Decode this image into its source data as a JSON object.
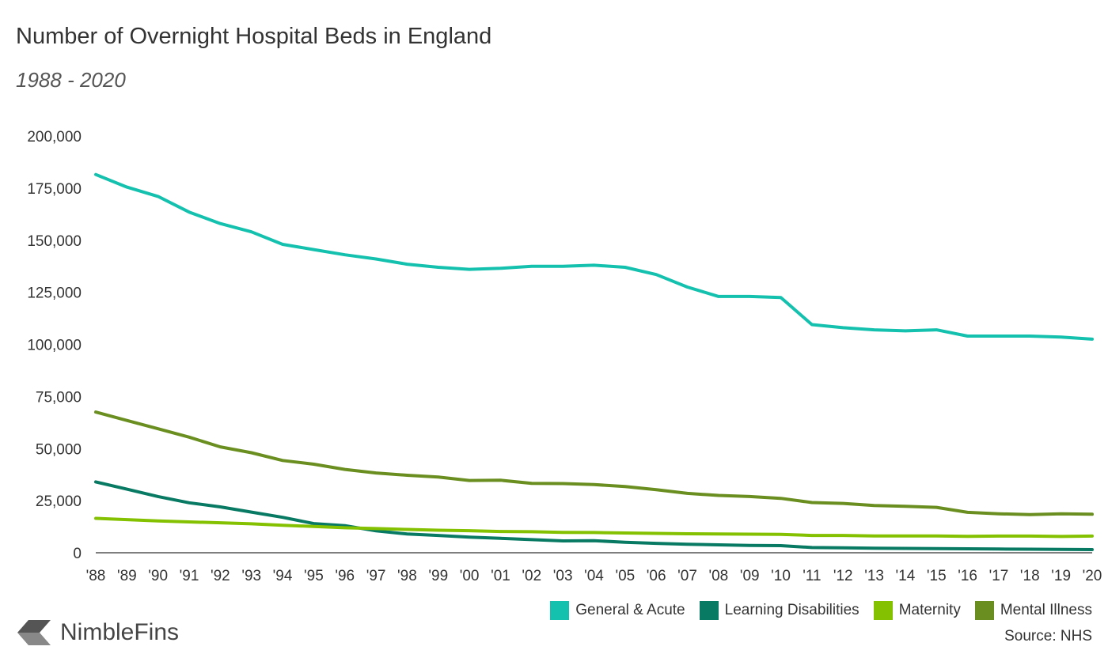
{
  "title": "Number of Overnight Hospital Beds in England",
  "subtitle": "1988 - 2020",
  "source": "Source: NHS",
  "brand": "NimbleFins",
  "colors": {
    "general_acute": "#14c0ae",
    "learning_disabilities": "#087a63",
    "maternity": "#84c100",
    "mental_illness": "#6a8f20",
    "brand_mark": "#555555"
  },
  "chart_data": {
    "type": "line",
    "title": "Number of Overnight Hospital Beds in England",
    "subtitle": "1988 - 2020",
    "xlabel": "",
    "ylabel": "",
    "ylim": [
      0,
      200000
    ],
    "yticks": [
      0,
      25000,
      50000,
      75000,
      100000,
      125000,
      150000,
      175000,
      200000
    ],
    "ytick_labels": [
      "0",
      "25,000",
      "50,000",
      "75,000",
      "100,000",
      "125,000",
      "150,000",
      "175,000",
      "200,000"
    ],
    "grid": false,
    "legend_position": "bottom-right",
    "categories": [
      "'88",
      "'89",
      "'90",
      "'91",
      "'92",
      "'93",
      "'94",
      "'95",
      "'96",
      "'97",
      "'98",
      "'99",
      "'00",
      "'01",
      "'02",
      "'03",
      "'04",
      "'05",
      "'06",
      "'07",
      "'08",
      "'09",
      "'10",
      "'11",
      "'12",
      "'13",
      "'14",
      "'15",
      "'16",
      "'17",
      "'18",
      "'19",
      "'20"
    ],
    "series": [
      {
        "name": "General & Acute",
        "color": "#14c0ae",
        "values": [
          181500,
          175500,
          171000,
          163500,
          158000,
          154000,
          148000,
          145500,
          143000,
          141000,
          138500,
          137000,
          136000,
          136500,
          137500,
          137500,
          138000,
          137000,
          133500,
          127500,
          123000,
          123000,
          122500,
          109500,
          108000,
          107000,
          106500,
          107000,
          104000,
          104000,
          104000,
          103500,
          102500
        ]
      },
      {
        "name": "Learning Disabilities",
        "color": "#087a63",
        "values": [
          34000,
          30500,
          27000,
          24000,
          22000,
          19500,
          17000,
          14000,
          13000,
          10500,
          9000,
          8300,
          7500,
          6900,
          6300,
          5700,
          5800,
          5000,
          4500,
          4100,
          3800,
          3500,
          3400,
          2500,
          2400,
          2200,
          2100,
          2000,
          1900,
          1800,
          1700,
          1600,
          1500
        ]
      },
      {
        "name": "Maternity",
        "color": "#84c100",
        "values": [
          16500,
          15900,
          15300,
          14800,
          14400,
          13900,
          13200,
          12600,
          12000,
          11600,
          11200,
          10800,
          10600,
          10200,
          10100,
          9800,
          9700,
          9500,
          9300,
          9100,
          9000,
          8900,
          8800,
          8300,
          8300,
          8100,
          8100,
          8100,
          7900,
          8000,
          8000,
          7800,
          8000
        ]
      },
      {
        "name": "Mental Illness",
        "color": "#6a8f20",
        "values": [
          67500,
          63500,
          59500,
          55500,
          50800,
          48000,
          44300,
          42500,
          40000,
          38300,
          37200,
          36300,
          34700,
          34800,
          33300,
          33200,
          32700,
          31800,
          30300,
          28500,
          27500,
          27000,
          26100,
          24100,
          23700,
          22700,
          22300,
          21800,
          19400,
          18700,
          18300,
          18700,
          18500
        ]
      }
    ]
  }
}
